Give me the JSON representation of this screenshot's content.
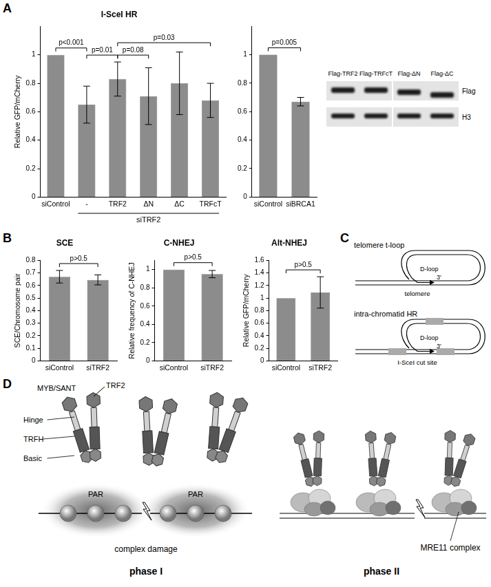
{
  "panel_labels": [
    "A",
    "B",
    "C",
    "D"
  ],
  "chart_data": [
    {
      "type": "bar",
      "title": "I-SceI HR",
      "y_label": "Relative GFP/mCherry",
      "categories": [
        "siControl",
        "-",
        "TRF2",
        "ΔN",
        "ΔC",
        "TRFcT"
      ],
      "values": [
        1,
        0.65,
        0.83,
        0.71,
        0.8,
        0.68
      ],
      "errors": [
        0,
        0.13,
        0.12,
        0.2,
        0.22,
        0.12
      ],
      "color": "#8c8c8c",
      "ylim": [
        0,
        1.2
      ],
      "yticks": [
        0,
        0.2,
        0.4,
        0.6,
        0.8,
        1
      ],
      "grid": false,
      "groups": [
        {
          "label": "siTRF2",
          "categories": [
            "-",
            "TRF2",
            "ΔN",
            "ΔC",
            "TRFcT"
          ]
        }
      ],
      "comparisons": [
        {
          "between": [
            "siControl",
            "-"
          ],
          "label": "p<0.001"
        },
        {
          "between": [
            "-",
            "TRF2"
          ],
          "label": "p=0.01"
        },
        {
          "between": [
            "TRF2",
            "ΔN"
          ],
          "label": "p=0.08"
        },
        {
          "between": [
            "TRF2",
            "TRFcT"
          ],
          "label": "p=0.03"
        }
      ]
    },
    {
      "type": "bar",
      "categories": [
        "siControl",
        "siBRCA1"
      ],
      "values": [
        1,
        0.67
      ],
      "errors": [
        0,
        0.03
      ],
      "color": "#8c8c8c",
      "ylim": [
        0,
        1.2
      ],
      "yticks": [
        0,
        0.2,
        0.4,
        0.6,
        0.8,
        1
      ],
      "grid": false,
      "comparisons": [
        {
          "between": [
            "siControl",
            "siBRCA1"
          ],
          "label": "p=0.005"
        }
      ]
    },
    {
      "type": "bar",
      "title": "SCE",
      "y_label": "SCE/Chromosome pair",
      "categories": [
        "siControl",
        "siTRF2"
      ],
      "values": [
        0.67,
        0.645
      ],
      "errors": [
        0.05,
        0.04
      ],
      "color": "#8c8c8c",
      "ylim": [
        0,
        0.8
      ],
      "yticks": [
        0,
        0.1,
        0.2,
        0.3,
        0.4,
        0.5,
        0.6,
        0.7,
        0.8
      ],
      "grid": false,
      "comparisons": [
        {
          "between": [
            "siControl",
            "siTRF2"
          ],
          "label": "p>0.5"
        }
      ]
    },
    {
      "type": "bar",
      "title": "C-NHEJ",
      "y_label": "Relative frequency of C-NHEJ",
      "categories": [
        "siControl",
        "siTRF2"
      ],
      "values": [
        1,
        0.95
      ],
      "errors": [
        0,
        0.04
      ],
      "color": "#8c8c8c",
      "ylim": [
        0,
        1.1
      ],
      "yticks": [
        0,
        0.2,
        0.4,
        0.6,
        0.8,
        1
      ],
      "grid": false,
      "comparisons": [
        {
          "between": [
            "siControl",
            "siTRF2"
          ],
          "label": "p>0.5"
        }
      ]
    },
    {
      "type": "bar",
      "title": "Alt-NHEJ",
      "y_label": "Relative GFP/mCherry",
      "categories": [
        "siControl",
        "siTRF2"
      ],
      "values": [
        1,
        1.09
      ],
      "errors": [
        0,
        0.25
      ],
      "color": "#8c8c8c",
      "ylim": [
        0,
        1.6
      ],
      "yticks": [
        0,
        0.2,
        0.4,
        0.6,
        0.8,
        1,
        1.2,
        1.4,
        1.6
      ],
      "grid": false,
      "comparisons": [
        {
          "between": [
            "siControl",
            "siTRF2"
          ],
          "label": "p>0.5"
        }
      ]
    }
  ],
  "blot": {
    "lanes": [
      "Flag-TRF2",
      "Flag-TRFcT",
      "Flag-ΔN",
      "Flag-ΔC"
    ],
    "rows": [
      "Flag",
      "H3"
    ]
  },
  "diagram_c": [
    {
      "title": "telomere t-loop",
      "loop_label": "D-loop",
      "end_label": "3'",
      "base_label": "telomere"
    },
    {
      "title": "intra-chromatid HR",
      "loop_label": "D-loop",
      "end_label": "3'",
      "base_label": "I-SceI cut site"
    }
  ],
  "diagram_d": {
    "protein": "TRF2",
    "domains": [
      "MYB/SANT",
      "Hinge",
      "TRFH",
      "Basic"
    ],
    "phase_1": {
      "chromatin_labels": [
        "PAR",
        "PAR"
      ],
      "damage_label": "complex damage",
      "title": "phase I"
    },
    "phase_2": {
      "complex_label": "MRE11 complex",
      "title": "phase II"
    }
  }
}
